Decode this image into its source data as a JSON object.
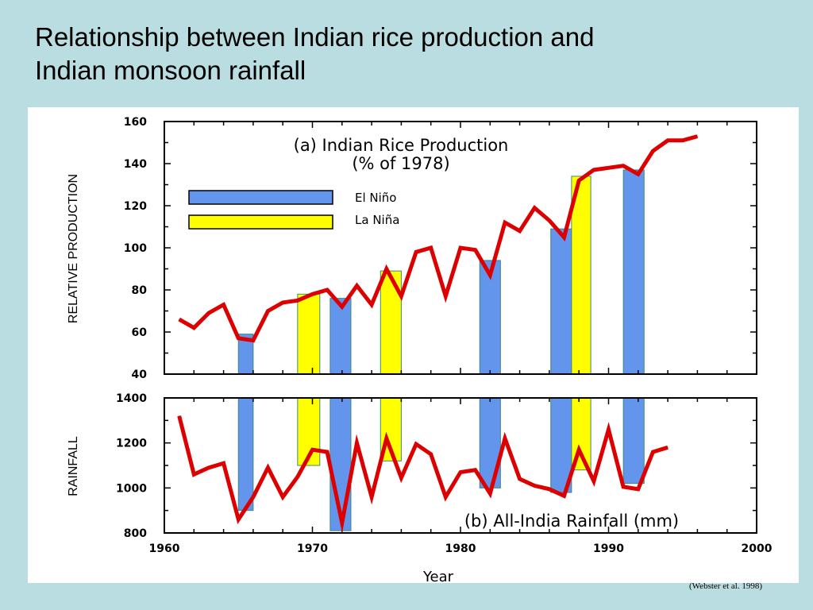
{
  "slide": {
    "title_line1": "Relationship between Indian rice production and",
    "title_line2": "Indian monsoon rainfall",
    "citation": "(Webster et al. 1998)"
  },
  "colors": {
    "background": "#b9dde0",
    "line": "#dd0000",
    "el_nino": "#6495ed",
    "la_nina": "#ffff00"
  },
  "chart_data": [
    {
      "type": "line",
      "title": "(a) Indian Rice Production",
      "subtitle": "(% of 1978)",
      "ylabel": "RELATIVE PRODUCTION",
      "xlabel": "",
      "xlim": [
        1960,
        2000
      ],
      "ylim": [
        40,
        160
      ],
      "y_ticks": [
        "40",
        "60",
        "80",
        "100",
        "120",
        "140",
        "160"
      ],
      "grid": false,
      "legend": [
        {
          "label": "El Niño",
          "color": "#6495ed"
        },
        {
          "label": "La Niña",
          "color": "#ffff00"
        }
      ],
      "legend_position": "top-left",
      "series": [
        {
          "x": [
            1961,
            1962,
            1963,
            1964,
            1965,
            1966,
            1967,
            1968,
            1969,
            1970,
            1971,
            1972,
            1973,
            1974,
            1975,
            1976,
            1977,
            1978,
            1979,
            1980,
            1981,
            1982,
            1983,
            1984,
            1985,
            1986,
            1987,
            1988,
            1989,
            1990,
            1991,
            1992,
            1993,
            1994,
            1995,
            1996
          ],
          "values": [
            66,
            62,
            69,
            73,
            57,
            56,
            70,
            74,
            75,
            78,
            80,
            72,
            82,
            73,
            90,
            77,
            98,
            100,
            77,
            100,
            99,
            87,
            112,
            108,
            119,
            113,
            105,
            132,
            137,
            138,
            139,
            135,
            146,
            151,
            151,
            153
          ]
        }
      ],
      "events": [
        {
          "type": "El Niño",
          "start": 1965,
          "end": 1966,
          "value": 59
        },
        {
          "type": "La Niña",
          "start": 1969,
          "end": 1970.5,
          "value": 78
        },
        {
          "type": "El Niño",
          "start": 1971.2,
          "end": 1972.6,
          "value": 76
        },
        {
          "type": "La Niña",
          "start": 1974.6,
          "end": 1976,
          "value": 89
        },
        {
          "type": "El Niño",
          "start": 1981.3,
          "end": 1982.7,
          "value": 94
        },
        {
          "type": "El Niño",
          "start": 1986.1,
          "end": 1987.5,
          "value": 109
        },
        {
          "type": "La Niña",
          "start": 1987.5,
          "end": 1988.8,
          "value": 134
        },
        {
          "type": "El Niño",
          "start": 1991,
          "end": 1992.4,
          "value": 137
        }
      ]
    },
    {
      "type": "line",
      "title": "(b) All-India Rainfall (mm)",
      "ylabel": "RAINFALL",
      "xlabel": "Year",
      "xlim": [
        1960,
        2000
      ],
      "ylim": [
        800,
        1400
      ],
      "x_ticks": [
        "1960",
        "1970",
        "1980",
        "1990",
        "2000"
      ],
      "y_ticks": [
        "800",
        "1000",
        "1200",
        "1400"
      ],
      "grid": false,
      "series": [
        {
          "x": [
            1961,
            1962,
            1963,
            1964,
            1965,
            1966,
            1967,
            1968,
            1969,
            1970,
            1971,
            1972,
            1973,
            1974,
            1975,
            1976,
            1977,
            1978,
            1979,
            1980,
            1981,
            1982,
            1983,
            1984,
            1985,
            1986,
            1987,
            1988,
            1989,
            1990,
            1991,
            1992,
            1993,
            1994
          ],
          "values": [
            1320,
            1060,
            1090,
            1110,
            860,
            960,
            1090,
            960,
            1050,
            1170,
            1160,
            845,
            1200,
            960,
            1220,
            1045,
            1195,
            1150,
            960,
            1070,
            1080,
            975,
            1220,
            1040,
            1010,
            995,
            965,
            1170,
            1030,
            1260,
            1005,
            995,
            1160,
            1180
          ]
        }
      ],
      "events": [
        {
          "type": "El Niño",
          "start": 1965,
          "end": 1966,
          "value": 900
        },
        {
          "type": "La Niña",
          "start": 1969,
          "end": 1970.5,
          "value": 1100
        },
        {
          "type": "El Niño",
          "start": 1971.2,
          "end": 1972.6,
          "value": 810
        },
        {
          "type": "La Niña",
          "start": 1974.6,
          "end": 1976,
          "value": 1120
        },
        {
          "type": "El Niño",
          "start": 1981.3,
          "end": 1982.7,
          "value": 1000
        },
        {
          "type": "El Niño",
          "start": 1986.1,
          "end": 1987.5,
          "value": 980
        },
        {
          "type": "La Niña",
          "start": 1987.5,
          "end": 1988.8,
          "value": 1080
        },
        {
          "type": "El Niño",
          "start": 1991,
          "end": 1992.4,
          "value": 1020
        }
      ]
    }
  ]
}
